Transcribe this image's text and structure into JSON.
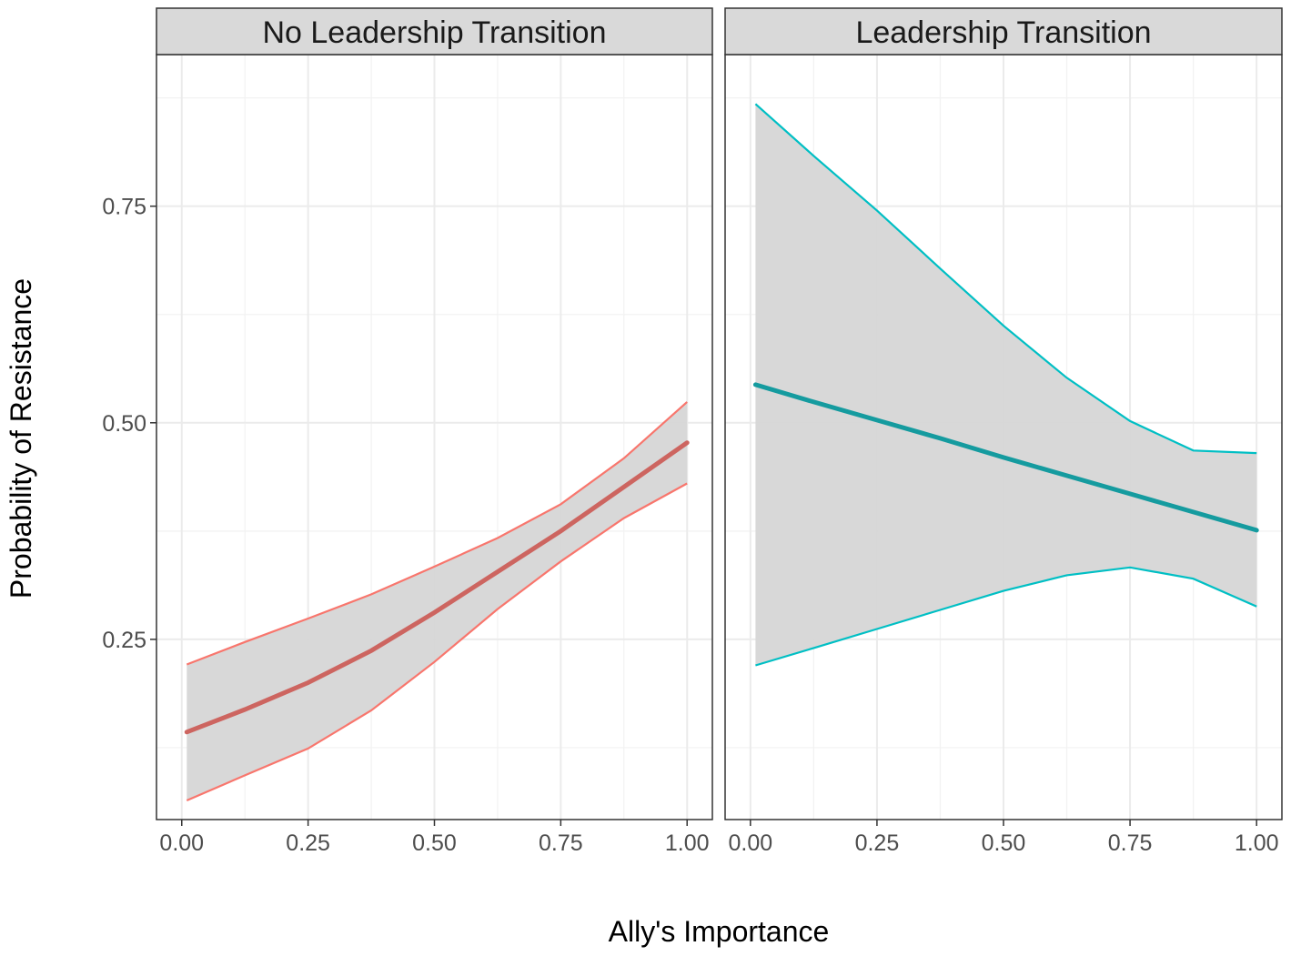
{
  "chart_data": {
    "type": "line",
    "xlabel": "Ally's Importance",
    "ylabel": "Probability of Resistance",
    "x_ticks": [
      "0.00",
      "0.25",
      "0.50",
      "0.75",
      "1.00"
    ],
    "y_ticks": [
      "0.25",
      "0.50",
      "0.75"
    ],
    "xlim": [
      -0.05,
      1.05
    ],
    "ylim": [
      0.042,
      0.925
    ],
    "grid": true,
    "ribbon_fill": "#d6d6d6",
    "panels": [
      {
        "title": "No Leadership Transition",
        "color": "#f8766d",
        "line_color": "#cd6560",
        "x": [
          0.01,
          0.125,
          0.25,
          0.375,
          0.5,
          0.625,
          0.75,
          0.875,
          1.0
        ],
        "fit": [
          0.143,
          0.169,
          0.2,
          0.237,
          0.281,
          0.328,
          0.375,
          0.426,
          0.477
        ],
        "upper": [
          0.221,
          0.247,
          0.274,
          0.302,
          0.334,
          0.367,
          0.406,
          0.459,
          0.524
        ],
        "lower": [
          0.064,
          0.093,
          0.124,
          0.168,
          0.224,
          0.285,
          0.34,
          0.39,
          0.43
        ]
      },
      {
        "title": "Leadership Transition",
        "color": "#00bfc4",
        "line_color": "#159b9f",
        "x": [
          0.01,
          0.125,
          0.25,
          0.375,
          0.5,
          0.625,
          0.75,
          0.875,
          1.0
        ],
        "fit": [
          0.544,
          0.524,
          0.503,
          0.482,
          0.46,
          0.439,
          0.418,
          0.397,
          0.376
        ],
        "upper": [
          0.868,
          0.808,
          0.745,
          0.678,
          0.612,
          0.552,
          0.502,
          0.468,
          0.465
        ],
        "lower": [
          0.22,
          0.24,
          0.262,
          0.284,
          0.306,
          0.324,
          0.333,
          0.32,
          0.288
        ]
      }
    ]
  }
}
